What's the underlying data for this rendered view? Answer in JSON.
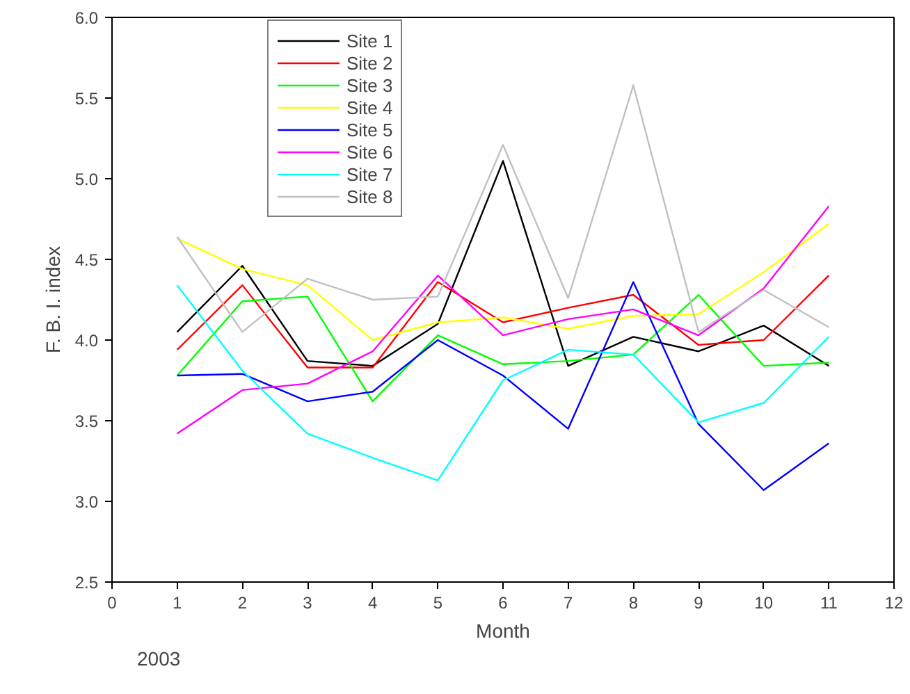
{
  "chart_data": {
    "type": "line",
    "xlabel": "Month",
    "ylabel": "F. B. I. index",
    "x": [
      1,
      2,
      3,
      4,
      5,
      6,
      7,
      8,
      9,
      10,
      11
    ],
    "xlim": [
      0,
      12
    ],
    "xticks": [
      0,
      1,
      2,
      3,
      4,
      5,
      6,
      7,
      8,
      9,
      10,
      11,
      12
    ],
    "ylim": [
      2.5,
      6.0
    ],
    "yticks": [
      {
        "value": 2.5,
        "label": "2.5"
      },
      {
        "value": 3.0,
        "label": "3.0"
      },
      {
        "value": 3.5,
        "label": "3.5"
      },
      {
        "value": 4.0,
        "label": "4.0"
      },
      {
        "value": 4.5,
        "label": "4.5"
      },
      {
        "value": 5.0,
        "label": "5.0"
      },
      {
        "value": 5.5,
        "label": "5.5"
      },
      {
        "value": 6.0,
        "label": "6.0"
      }
    ],
    "grid": false,
    "legend": "top",
    "marker": "none",
    "line_style": "solid",
    "annotations": [
      "2003"
    ],
    "series": [
      {
        "name": "Site 1",
        "color": "#000000",
        "values": [
          4.05,
          4.46,
          3.87,
          3.84,
          4.1,
          5.11,
          3.84,
          4.02,
          3.93,
          4.09,
          3.84
        ]
      },
      {
        "name": "Site 2",
        "color": "#ff0000",
        "values": [
          3.94,
          4.34,
          3.83,
          3.83,
          4.36,
          4.11,
          4.2,
          4.28,
          3.97,
          4.0,
          4.4
        ]
      },
      {
        "name": "Site 3",
        "color": "#00ff00",
        "values": [
          3.78,
          4.24,
          4.27,
          3.62,
          4.03,
          3.85,
          3.87,
          3.91,
          4.28,
          3.84,
          3.86
        ]
      },
      {
        "name": "Site 4",
        "color": "#ffff00",
        "values": [
          4.63,
          4.44,
          4.34,
          4.0,
          4.11,
          4.14,
          4.07,
          4.15,
          4.16,
          4.42,
          4.72
        ]
      },
      {
        "name": "Site 5",
        "color": "#0000ff",
        "values": [
          3.78,
          3.79,
          3.62,
          3.68,
          4.0,
          3.78,
          3.45,
          4.36,
          3.48,
          3.07,
          3.36
        ]
      },
      {
        "name": "Site 6",
        "color": "#ff00ff",
        "values": [
          3.42,
          3.69,
          3.73,
          3.93,
          4.4,
          4.03,
          4.13,
          4.19,
          4.03,
          4.32,
          4.83
        ]
      },
      {
        "name": "Site 7",
        "color": "#00ffff",
        "values": [
          4.34,
          3.81,
          3.42,
          3.27,
          3.13,
          3.75,
          3.94,
          3.91,
          3.49,
          3.61,
          4.02
        ]
      },
      {
        "name": "Site 8",
        "color": "#c0c0c0",
        "values": [
          4.64,
          4.05,
          4.38,
          4.25,
          4.27,
          5.21,
          4.26,
          5.58,
          4.05,
          4.31,
          4.08
        ]
      }
    ]
  }
}
